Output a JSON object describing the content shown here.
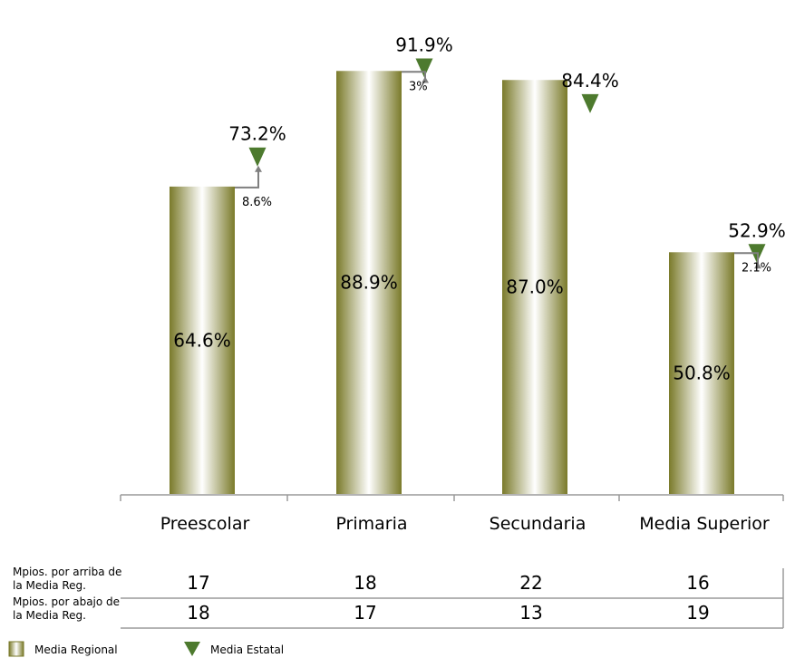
{
  "colors": {
    "bar_edge": "#7a7a2a",
    "bar_mid": "#ffffff",
    "marker": "#4d7a2e",
    "arrow": "#7f7f7f",
    "axis": "#9a9a9a"
  },
  "chart_data": {
    "type": "bar",
    "categories": [
      "Preescolar",
      "Primaria",
      "Secundaria",
      "Media Superior"
    ],
    "series": [
      {
        "name": "Media Regional",
        "values": [
          64.6,
          88.9,
          87.0,
          50.8
        ],
        "labels": [
          "64.6%",
          "88.9%",
          "87.0%",
          "50.8%"
        ]
      },
      {
        "name": "Media Estatal",
        "values": [
          73.2,
          91.9,
          84.4,
          52.9
        ],
        "labels": [
          "73.2%",
          "91.9%",
          "84.4%",
          "52.9%"
        ],
        "marker": "triangle-down"
      }
    ],
    "differences": [
      "8.6%",
      "3%",
      "",
      "2.1%"
    ],
    "ylim": [
      0,
      100
    ],
    "grid": false,
    "legend": "bottom-left"
  },
  "table": {
    "rows": [
      {
        "header_line1": "Mpios. por arriba de",
        "header_line2": "la Media Reg.",
        "values": [
          "17",
          "18",
          "22",
          "16"
        ]
      },
      {
        "header_line1": "Mpios. por abajo de",
        "header_line2": "la Media Reg.",
        "values": [
          "18",
          "17",
          "13",
          "19"
        ]
      }
    ]
  },
  "legend": {
    "regional_label": "Media Regional",
    "estatal_label": "Media Estatal"
  }
}
